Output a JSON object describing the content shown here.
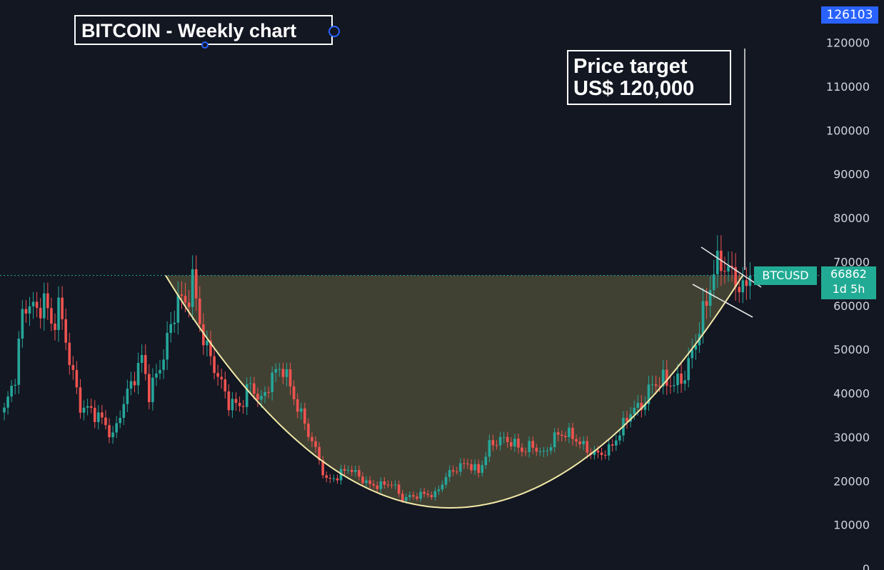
{
  "chart_data": {
    "type": "candlestick",
    "title": "BITCOIN - Weekly chart",
    "symbol": "BTCUSD",
    "last_price": 66862,
    "countdown": "1d 5h",
    "top_price_label": "126103",
    "annotation": {
      "line1": "Price target",
      "line2": "US$ 120,000"
    },
    "y_axis": {
      "ticks": [
        0,
        10000,
        20000,
        30000,
        40000,
        50000,
        60000,
        70000,
        80000,
        90000,
        100000,
        110000,
        120000
      ],
      "ylim": [
        0,
        130000
      ]
    },
    "series": [
      {
        "waypoints": [
          [
            0,
            36000
          ],
          [
            3,
            44000
          ],
          [
            5,
            58000
          ],
          [
            7,
            61000
          ],
          [
            9,
            58000
          ],
          [
            11,
            62000
          ],
          [
            13,
            55000
          ],
          [
            15,
            60000
          ],
          [
            17,
            52000
          ],
          [
            19,
            44000
          ],
          [
            21,
            37000
          ],
          [
            24,
            36000
          ],
          [
            27,
            34000
          ],
          [
            30,
            30000
          ],
          [
            33,
            38000
          ],
          [
            36,
            44000
          ],
          [
            38,
            48000
          ],
          [
            40,
            40000
          ],
          [
            43,
            46000
          ],
          [
            46,
            55000
          ],
          [
            48,
            62000
          ],
          [
            50,
            60000
          ],
          [
            52,
            66000
          ],
          [
            54,
            56000
          ],
          [
            56,
            50000
          ],
          [
            59,
            44000
          ],
          [
            62,
            38000
          ],
          [
            65,
            37000
          ],
          [
            68,
            42000
          ],
          [
            71,
            38000
          ],
          [
            74,
            44000
          ],
          [
            77,
            46000
          ],
          [
            80,
            39000
          ],
          [
            83,
            33000
          ],
          [
            86,
            27000
          ],
          [
            89,
            20000
          ],
          [
            92,
            21000
          ],
          [
            95,
            23000
          ],
          [
            98,
            21000
          ],
          [
            101,
            19000
          ],
          [
            104,
            19000
          ],
          [
            107,
            19500
          ],
          [
            110,
            16000
          ],
          [
            113,
            16500
          ],
          [
            116,
            17000
          ],
          [
            119,
            16800
          ],
          [
            122,
            21000
          ],
          [
            125,
            23000
          ],
          [
            128,
            24000
          ],
          [
            131,
            22000
          ],
          [
            134,
            28000
          ],
          [
            137,
            29500
          ],
          [
            140,
            29000
          ],
          [
            143,
            27000
          ],
          [
            146,
            28000
          ],
          [
            149,
            26000
          ],
          [
            152,
            30000
          ],
          [
            155,
            31000
          ],
          [
            158,
            29500
          ],
          [
            161,
            27000
          ],
          [
            164,
            26000
          ],
          [
            167,
            27000
          ],
          [
            170,
            31000
          ],
          [
            173,
            36000
          ],
          [
            176,
            37000
          ],
          [
            179,
            42000
          ],
          [
            182,
            43000
          ],
          [
            185,
            42000
          ],
          [
            188,
            44000
          ],
          [
            191,
            52000
          ],
          [
            194,
            61000
          ],
          [
            196,
            68000
          ],
          [
            198,
            70000
          ],
          [
            200,
            68000
          ],
          [
            202,
            66000
          ],
          [
            204,
            63000
          ],
          [
            206,
            66862
          ]
        ]
      }
    ]
  }
}
